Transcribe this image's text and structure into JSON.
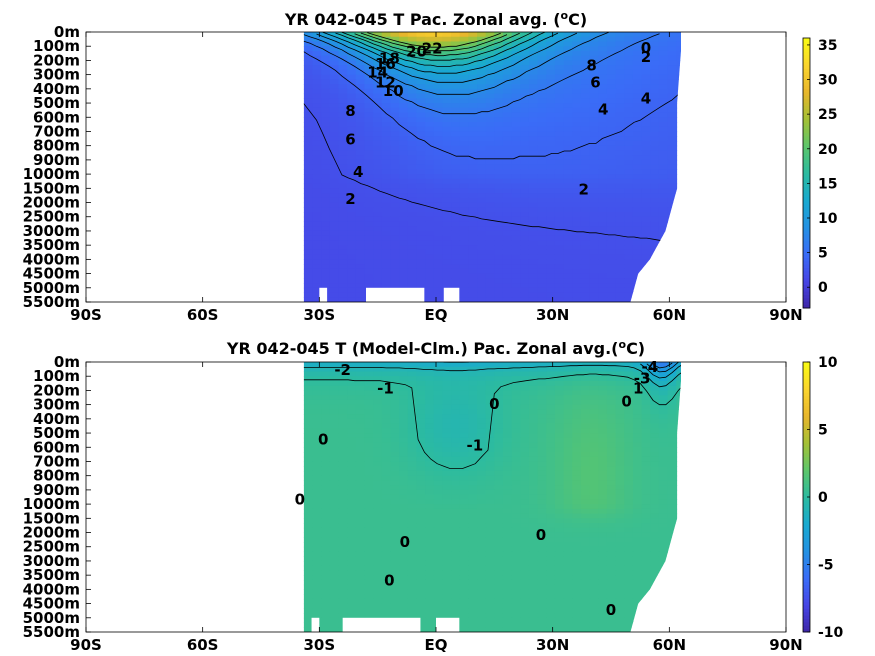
{
  "colors": {
    "colormap": [
      "#3e26a8",
      "#4745e5",
      "#3a6cf7",
      "#2491e3",
      "#19aad0",
      "#2cbba0",
      "#5cc66b",
      "#a4c136",
      "#e8b62c",
      "#fbd52e",
      "#f9fb14"
    ],
    "land": "#ffffff",
    "contour": "#000000"
  },
  "chart_data": [
    {
      "type": "heatmap",
      "title": "YR 042-045 T Pac. Zonal avg. (",
      "title_sup": "o",
      "title_end": "C)",
      "x_ticks": [
        "90S",
        "60S",
        "30S",
        "EQ",
        "30N",
        "60N",
        "90N"
      ],
      "x_values": [
        -90,
        -60,
        -30,
        0,
        30,
        60,
        90
      ],
      "y_ticks": [
        "0m",
        "100m",
        "200m",
        "300m",
        "400m",
        "500m",
        "600m",
        "700m",
        "800m",
        "900m",
        "1000m",
        "1500m",
        "2000m",
        "2500m",
        "3000m",
        "3500m",
        "4000m",
        "4500m",
        "5000m",
        "5500m"
      ],
      "y_values": [
        0,
        100,
        200,
        300,
        400,
        500,
        600,
        700,
        800,
        900,
        1000,
        1500,
        2000,
        2500,
        3000,
        3500,
        4000,
        4500,
        5000,
        5500
      ],
      "colorbar": {
        "min": -3,
        "max": 36,
        "ticks": [
          "35",
          "30",
          "25",
          "20",
          "15",
          "10",
          "5",
          "0"
        ],
        "tick_values": [
          35,
          30,
          25,
          20,
          15,
          10,
          5,
          0
        ]
      },
      "contour_labels": [
        {
          "text": "22",
          "lat": -1,
          "depth": 120
        },
        {
          "text": "20",
          "lat": -5,
          "depth": 140
        },
        {
          "text": "18",
          "lat": -12,
          "depth": 190
        },
        {
          "text": "16",
          "lat": -13,
          "depth": 230
        },
        {
          "text": "14",
          "lat": -15,
          "depth": 290
        },
        {
          "text": "12",
          "lat": -13,
          "depth": 360
        },
        {
          "text": "10",
          "lat": -11,
          "depth": 420
        },
        {
          "text": "8",
          "lat": -22,
          "depth": 560
        },
        {
          "text": "6",
          "lat": -22,
          "depth": 760
        },
        {
          "text": "4",
          "lat": -20,
          "depth": 990
        },
        {
          "text": "2",
          "lat": -22,
          "depth": 1900
        },
        {
          "text": "2",
          "lat": 38,
          "depth": 1560
        },
        {
          "text": "4",
          "lat": 43,
          "depth": 550
        },
        {
          "text": "6",
          "lat": 41,
          "depth": 360
        },
        {
          "text": "8",
          "lat": 40,
          "depth": 240
        },
        {
          "text": "4",
          "lat": 54,
          "depth": 470
        },
        {
          "text": "2",
          "lat": 54,
          "depth": 180
        },
        {
          "text": "0",
          "lat": 54,
          "depth": 115
        }
      ],
      "ocean_mask": {
        "lat_min": -34,
        "north_edge": [
          [
            0,
            63
          ],
          [
            130,
            63
          ],
          [
            500,
            62
          ],
          [
            1000,
            62
          ],
          [
            1500,
            62
          ],
          [
            2000,
            61
          ],
          [
            2500,
            60
          ],
          [
            3000,
            59
          ],
          [
            3500,
            57
          ],
          [
            4000,
            55
          ],
          [
            4500,
            52
          ],
          [
            5000,
            51
          ],
          [
            5500,
            50
          ]
        ],
        "seafloor_gaps": [
          [
            -30,
            -28,
            5000
          ],
          [
            -18,
            -3,
            5000
          ],
          [
            2,
            6,
            5000
          ]
        ]
      }
    },
    {
      "type": "heatmap",
      "title": "YR 042-045 T (Model-Clm.) Pac. Zonal avg.(",
      "title_sup": "o",
      "title_end": "C)",
      "x_ticks": [
        "90S",
        "60S",
        "30S",
        "EQ",
        "30N",
        "60N",
        "90N"
      ],
      "x_values": [
        -90,
        -60,
        -30,
        0,
        30,
        60,
        90
      ],
      "y_ticks": [
        "0m",
        "100m",
        "200m",
        "300m",
        "400m",
        "500m",
        "600m",
        "700m",
        "800m",
        "900m",
        "1000m",
        "1500m",
        "2000m",
        "2500m",
        "3000m",
        "3500m",
        "4000m",
        "4500m",
        "5000m",
        "5500m"
      ],
      "y_values": [
        0,
        100,
        200,
        300,
        400,
        500,
        600,
        700,
        800,
        900,
        1000,
        1500,
        2000,
        2500,
        3000,
        3500,
        4000,
        4500,
        5000,
        5500
      ],
      "colorbar": {
        "min": -10,
        "max": 10,
        "ticks": [
          "10",
          "5",
          "0",
          "-5",
          "-10"
        ],
        "tick_values": [
          10,
          5,
          0,
          -5,
          -10
        ]
      },
      "contour_labels": [
        {
          "text": "-2",
          "lat": -24,
          "depth": 60
        },
        {
          "text": "-1",
          "lat": -13,
          "depth": 190
        },
        {
          "text": "0",
          "lat": 15,
          "depth": 300
        },
        {
          "text": "-1",
          "lat": 10,
          "depth": 590
        },
        {
          "text": "0",
          "lat": -29,
          "depth": 550
        },
        {
          "text": "0",
          "lat": -35,
          "depth": 970
        },
        {
          "text": "0",
          "lat": 27,
          "depth": 2100
        },
        {
          "text": "0",
          "lat": -8,
          "depth": 2350
        },
        {
          "text": "0",
          "lat": -12,
          "depth": 3700
        },
        {
          "text": "0",
          "lat": 45,
          "depth": 4750
        },
        {
          "text": "0",
          "lat": 49,
          "depth": 280
        },
        {
          "text": "1",
          "lat": 52,
          "depth": 190
        },
        {
          "text": "-3",
          "lat": 53,
          "depth": 120
        },
        {
          "text": "-4",
          "lat": 55,
          "depth": 40
        }
      ],
      "ocean_mask": {
        "lat_min": -34,
        "north_edge": [
          [
            0,
            63
          ],
          [
            130,
            63
          ],
          [
            500,
            62
          ],
          [
            1000,
            62
          ],
          [
            1500,
            62
          ],
          [
            2000,
            61
          ],
          [
            2500,
            60
          ],
          [
            3000,
            59
          ],
          [
            3500,
            57
          ],
          [
            4000,
            55
          ],
          [
            4500,
            52
          ],
          [
            5000,
            51
          ],
          [
            5500,
            50
          ]
        ],
        "seafloor_gaps": [
          [
            -32,
            -30,
            5000
          ],
          [
            -24,
            -4,
            5000
          ],
          [
            0,
            6,
            5000
          ]
        ]
      }
    }
  ]
}
